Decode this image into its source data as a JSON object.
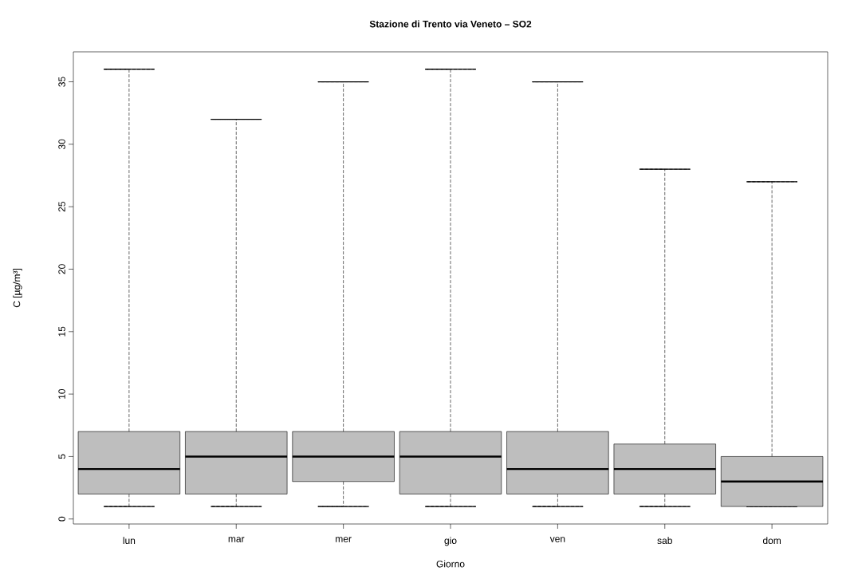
{
  "chart_data": {
    "type": "box",
    "title": "Stazione di Trento via Veneto – SO2",
    "xlabel": "Giorno",
    "ylabel": "C [µg/m³]",
    "categories": [
      "lun",
      "mar",
      "mer",
      "gio",
      "ven",
      "sab",
      "dom"
    ],
    "color": "#bebebe",
    "boxes": [
      {
        "low": 1,
        "q1": 2,
        "median": 4,
        "q3": 7,
        "high": 36
      },
      {
        "low": 1,
        "q1": 2,
        "median": 5,
        "q3": 7,
        "high": 32
      },
      {
        "low": 1,
        "q1": 3,
        "median": 5,
        "q3": 7,
        "high": 35
      },
      {
        "low": 1,
        "q1": 2,
        "median": 5,
        "q3": 7,
        "high": 36
      },
      {
        "low": 1,
        "q1": 2,
        "median": 4,
        "q3": 7,
        "high": 35
      },
      {
        "low": 1,
        "q1": 2,
        "median": 4,
        "q3": 6,
        "high": 28
      },
      {
        "low": 1,
        "q1": 1,
        "median": 3,
        "q3": 5,
        "high": 27
      }
    ],
    "ylim": [
      -0.4,
      37.4
    ],
    "yticks": [
      0,
      5,
      10,
      15,
      20,
      25,
      30,
      35
    ]
  }
}
